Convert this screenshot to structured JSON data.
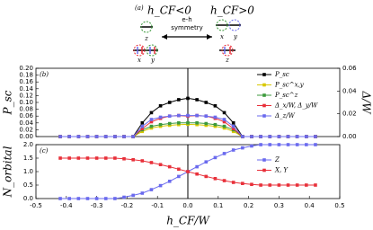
{
  "schematic": {
    "label": "(a)",
    "left_title": "h_CF<0",
    "right_title": "h_CF>0",
    "arrow_label": [
      "e-h",
      "symmetry"
    ],
    "left_orbitals": [
      "z",
      "x",
      "y"
    ],
    "right_orbitals": [
      "x",
      "y",
      "z"
    ]
  },
  "chart_data": [
    {
      "type": "line",
      "panel_label": "(b)",
      "ylabel": "P_sc",
      "y2label": "Δ/W",
      "xlim": [
        -0.5,
        0.5
      ],
      "ylim": [
        0,
        0.2
      ],
      "y2lim": [
        0,
        0.06
      ],
      "yticks": [
        {
          "value": 0,
          "label": "0.00"
        },
        {
          "value": 0.02,
          "label": "0.02"
        },
        {
          "value": 0.04,
          "label": "0.04"
        },
        {
          "value": 0.06,
          "label": "0.06"
        },
        {
          "value": 0.08,
          "label": "0.08"
        },
        {
          "value": 0.1,
          "label": "0.10"
        },
        {
          "value": 0.12,
          "label": "0.12"
        },
        {
          "value": 0.14,
          "label": "0.14"
        },
        {
          "value": 0.16,
          "label": "0.16"
        },
        {
          "value": 0.18,
          "label": "0.18"
        },
        {
          "value": 0.2,
          "label": "0.20"
        }
      ],
      "y2ticks": [
        {
          "value": 0,
          "label": "0.00"
        },
        {
          "value": 0.02,
          "label": "0.02"
        },
        {
          "value": 0.04,
          "label": "0.04"
        },
        {
          "value": 0.06,
          "label": "0.06"
        }
      ],
      "vline": 0,
      "legend": "upper right",
      "x": [
        -0.42,
        -0.39,
        -0.36,
        -0.33,
        -0.3,
        -0.27,
        -0.24,
        -0.21,
        -0.18,
        -0.15,
        -0.12,
        -0.09,
        -0.06,
        -0.03,
        0,
        0.03,
        0.06,
        0.09,
        0.12,
        0.15,
        0.18,
        0.21,
        0.24,
        0.27,
        0.3,
        0.33,
        0.36,
        0.39,
        0.42
      ],
      "series": [
        {
          "name": "P_sc",
          "color": "#000000",
          "values": [
            0,
            0,
            0,
            0,
            0,
            0,
            0,
            0,
            0,
            0.04,
            0.07,
            0.09,
            0.1,
            0.108,
            0.112,
            0.108,
            0.1,
            0.09,
            0.07,
            0.04,
            0,
            0,
            0,
            0,
            0,
            0,
            0,
            0,
            0
          ]
        },
        {
          "name": "P_sc^x,y",
          "color": "#d8c800",
          "values": [
            0,
            0,
            0,
            0,
            0,
            0,
            0,
            0,
            0,
            0.015,
            0.025,
            0.03,
            0.033,
            0.035,
            0.036,
            0.035,
            0.033,
            0.03,
            0.025,
            0.015,
            0,
            0,
            0,
            0,
            0,
            0,
            0,
            0,
            0
          ]
        },
        {
          "name": "P_sc^z",
          "color": "#3c9a3c",
          "values": [
            0,
            0,
            0,
            0,
            0,
            0,
            0,
            0,
            0,
            0.02,
            0.03,
            0.035,
            0.038,
            0.04,
            0.04,
            0.04,
            0.038,
            0.035,
            0.03,
            0.02,
            0,
            0,
            0,
            0,
            0,
            0,
            0,
            0,
            0
          ]
        },
        {
          "name": "Δ_x/W, Δ_y/W",
          "color": "#e8303a",
          "axis": "y2",
          "values": [
            0,
            0,
            0,
            0,
            0,
            0,
            0,
            0,
            0,
            0.007,
            0.013,
            0.016,
            0.018,
            0.0185,
            0.018,
            0.0185,
            0.018,
            0.016,
            0.013,
            0.007,
            0,
            0,
            0,
            0,
            0,
            0,
            0,
            0,
            0
          ]
        },
        {
          "name": "Δ_z/W",
          "color": "#6a6aee",
          "axis": "y2",
          "values": [
            0,
            0,
            0,
            0,
            0,
            0,
            0,
            0,
            0,
            0.009,
            0.015,
            0.017,
            0.018,
            0.0185,
            0.0185,
            0.0185,
            0.018,
            0.017,
            0.015,
            0.009,
            0,
            0,
            0,
            0,
            0,
            0,
            0,
            0,
            0
          ]
        }
      ]
    },
    {
      "type": "line",
      "panel_label": "(c)",
      "ylabel": "N_orbital",
      "xlabel": "h_CF/W",
      "xlim": [
        -0.5,
        0.5
      ],
      "ylim": [
        0,
        2
      ],
      "xticks": [
        -0.5,
        -0.4,
        -0.3,
        -0.2,
        -0.1,
        {
          "value": 0,
          "label": "0.0"
        },
        0.1,
        0.2,
        0.3,
        0.4,
        0.5
      ],
      "yticks": [
        {
          "value": 0,
          "label": "0.0"
        },
        {
          "value": 0.5,
          "label": "0.5"
        },
        {
          "value": 1,
          "label": "1.0"
        },
        {
          "value": 1.5,
          "label": "1.5"
        },
        {
          "value": 2,
          "label": "2.0"
        }
      ],
      "vline": 0,
      "legend": "center right",
      "x": [
        -0.42,
        -0.39,
        -0.36,
        -0.33,
        -0.3,
        -0.27,
        -0.24,
        -0.21,
        -0.18,
        -0.15,
        -0.12,
        -0.09,
        -0.06,
        -0.03,
        0,
        0.03,
        0.06,
        0.09,
        0.12,
        0.15,
        0.18,
        0.21,
        0.24,
        0.27,
        0.3,
        0.33,
        0.36,
        0.39,
        0.42
      ],
      "series": [
        {
          "name": "Z",
          "color": "#6a6aee",
          "values": [
            0,
            0,
            0,
            0,
            0,
            0,
            0,
            0.05,
            0.12,
            0.2,
            0.33,
            0.48,
            0.64,
            0.82,
            1.0,
            1.18,
            1.36,
            1.52,
            1.67,
            1.8,
            1.88,
            1.95,
            2.0,
            2.0,
            2.0,
            2.0,
            2.0,
            2.0,
            2.0
          ]
        },
        {
          "name": "X, Y",
          "color": "#e8303a",
          "values": [
            1.5,
            1.5,
            1.5,
            1.5,
            1.5,
            1.5,
            1.5,
            1.475,
            1.44,
            1.4,
            1.335,
            1.26,
            1.18,
            1.09,
            1.0,
            0.91,
            0.82,
            0.74,
            0.665,
            0.6,
            0.56,
            0.525,
            0.5,
            0.5,
            0.5,
            0.5,
            0.5,
            0.5,
            0.5
          ]
        }
      ]
    }
  ]
}
